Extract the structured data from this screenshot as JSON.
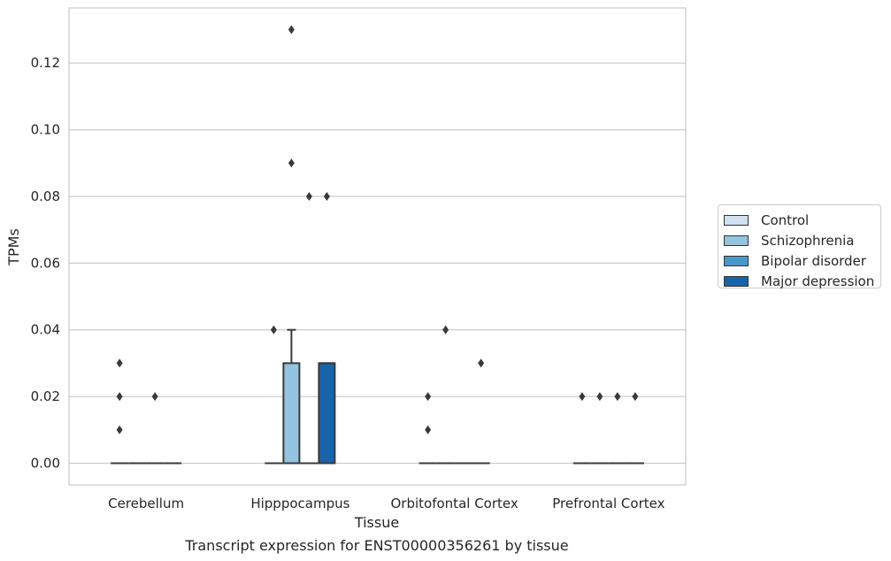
{
  "chart_data": {
    "type": "box",
    "title": "Transcript expression for ENST00000356261 by tissue",
    "xlabel": "Tissue",
    "ylabel": "TPMs",
    "ylim": [
      -0.0065,
      0.1365
    ],
    "yticks": [
      "0.00",
      "0.02",
      "0.04",
      "0.06",
      "0.08",
      "0.10",
      "0.12"
    ],
    "grid": "horizontal",
    "legend_position": "right",
    "categories": [
      "Cerebellum",
      "Hipppocampus",
      "Orbitofontal Cortex",
      "Prefrontal Cortex"
    ],
    "series": [
      {
        "name": "Control",
        "color": "#d0e1f2",
        "boxes": [
          {
            "q1": 0,
            "median": 0,
            "q3": 0,
            "whisker_low": 0,
            "whisker_high": 0,
            "outliers": [
              0.01,
              0.02,
              0.03
            ]
          },
          {
            "q1": 0,
            "median": 0,
            "q3": 0,
            "whisker_low": 0,
            "whisker_high": 0,
            "outliers": [
              0.04
            ]
          },
          {
            "q1": 0,
            "median": 0,
            "q3": 0,
            "whisker_low": 0,
            "whisker_high": 0,
            "outliers": [
              0.01,
              0.02
            ]
          },
          {
            "q1": 0,
            "median": 0,
            "q3": 0,
            "whisker_low": 0,
            "whisker_high": 0,
            "outliers": [
              0.02
            ]
          }
        ]
      },
      {
        "name": "Schizophrenia",
        "color": "#94c4df",
        "boxes": [
          {
            "q1": 0,
            "median": 0,
            "q3": 0,
            "whisker_low": 0,
            "whisker_high": 0,
            "outliers": []
          },
          {
            "q1": 0,
            "median": 0,
            "q3": 0.03,
            "whisker_low": 0,
            "whisker_high": 0.04,
            "outliers": [
              0.09,
              0.13
            ]
          },
          {
            "q1": 0,
            "median": 0,
            "q3": 0,
            "whisker_low": 0,
            "whisker_high": 0,
            "outliers": [
              0.04
            ]
          },
          {
            "q1": 0,
            "median": 0,
            "q3": 0,
            "whisker_low": 0,
            "whisker_high": 0,
            "outliers": [
              0.02
            ]
          }
        ]
      },
      {
        "name": "Bipolar disorder",
        "color": "#4a98c9",
        "boxes": [
          {
            "q1": 0,
            "median": 0,
            "q3": 0,
            "whisker_low": 0,
            "whisker_high": 0,
            "outliers": [
              0.02
            ]
          },
          {
            "q1": 0,
            "median": 0,
            "q3": 0,
            "whisker_low": 0,
            "whisker_high": 0,
            "outliers": [
              0.08
            ]
          },
          {
            "q1": 0,
            "median": 0,
            "q3": 0,
            "whisker_low": 0,
            "whisker_high": 0,
            "outliers": []
          },
          {
            "q1": 0,
            "median": 0,
            "q3": 0,
            "whisker_low": 0,
            "whisker_high": 0,
            "outliers": [
              0.02
            ]
          }
        ]
      },
      {
        "name": "Major depression",
        "color": "#1764ab",
        "boxes": [
          {
            "q1": 0,
            "median": 0,
            "q3": 0,
            "whisker_low": 0,
            "whisker_high": 0,
            "outliers": []
          },
          {
            "q1": 0,
            "median": 0.03,
            "q3": 0.03,
            "whisker_low": 0,
            "whisker_high": 0.03,
            "outliers": [
              0.08
            ]
          },
          {
            "q1": 0,
            "median": 0,
            "q3": 0,
            "whisker_low": 0,
            "whisker_high": 0,
            "outliers": [
              0.03
            ]
          },
          {
            "q1": 0,
            "median": 0,
            "q3": 0,
            "whisker_low": 0,
            "whisker_high": 0,
            "outliers": [
              0.02
            ]
          }
        ]
      }
    ]
  }
}
